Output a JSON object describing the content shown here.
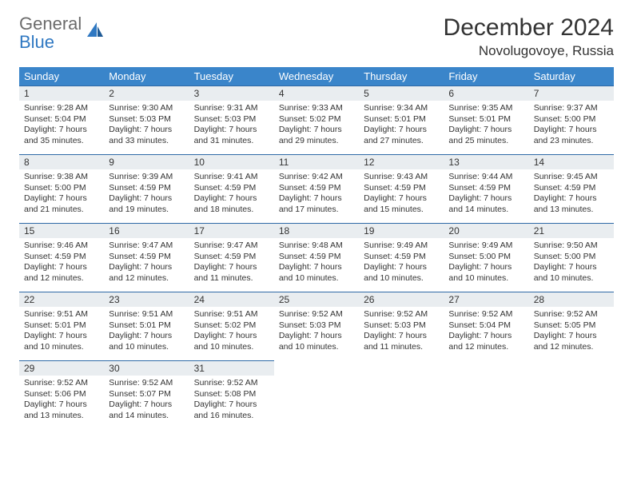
{
  "brand": {
    "name_top": "General",
    "name_bottom": "Blue"
  },
  "title": "December 2024",
  "location": "Novolugovoye, Russia",
  "colors": {
    "header_bg": "#3a85ca",
    "header_text": "#ffffff",
    "daynum_bg": "#e9edf0",
    "cell_border": "#2f6aa6",
    "text": "#333333",
    "logo_gray": "#6b6b6b",
    "logo_blue": "#2f78c2",
    "page_bg": "#ffffff"
  },
  "weekdays": [
    "Sunday",
    "Monday",
    "Tuesday",
    "Wednesday",
    "Thursday",
    "Friday",
    "Saturday"
  ],
  "weeks": [
    [
      {
        "n": "1",
        "sr": "Sunrise: 9:28 AM",
        "ss": "Sunset: 5:04 PM",
        "d1": "Daylight: 7 hours",
        "d2": "and 35 minutes."
      },
      {
        "n": "2",
        "sr": "Sunrise: 9:30 AM",
        "ss": "Sunset: 5:03 PM",
        "d1": "Daylight: 7 hours",
        "d2": "and 33 minutes."
      },
      {
        "n": "3",
        "sr": "Sunrise: 9:31 AM",
        "ss": "Sunset: 5:03 PM",
        "d1": "Daylight: 7 hours",
        "d2": "and 31 minutes."
      },
      {
        "n": "4",
        "sr": "Sunrise: 9:33 AM",
        "ss": "Sunset: 5:02 PM",
        "d1": "Daylight: 7 hours",
        "d2": "and 29 minutes."
      },
      {
        "n": "5",
        "sr": "Sunrise: 9:34 AM",
        "ss": "Sunset: 5:01 PM",
        "d1": "Daylight: 7 hours",
        "d2": "and 27 minutes."
      },
      {
        "n": "6",
        "sr": "Sunrise: 9:35 AM",
        "ss": "Sunset: 5:01 PM",
        "d1": "Daylight: 7 hours",
        "d2": "and 25 minutes."
      },
      {
        "n": "7",
        "sr": "Sunrise: 9:37 AM",
        "ss": "Sunset: 5:00 PM",
        "d1": "Daylight: 7 hours",
        "d2": "and 23 minutes."
      }
    ],
    [
      {
        "n": "8",
        "sr": "Sunrise: 9:38 AM",
        "ss": "Sunset: 5:00 PM",
        "d1": "Daylight: 7 hours",
        "d2": "and 21 minutes."
      },
      {
        "n": "9",
        "sr": "Sunrise: 9:39 AM",
        "ss": "Sunset: 4:59 PM",
        "d1": "Daylight: 7 hours",
        "d2": "and 19 minutes."
      },
      {
        "n": "10",
        "sr": "Sunrise: 9:41 AM",
        "ss": "Sunset: 4:59 PM",
        "d1": "Daylight: 7 hours",
        "d2": "and 18 minutes."
      },
      {
        "n": "11",
        "sr": "Sunrise: 9:42 AM",
        "ss": "Sunset: 4:59 PM",
        "d1": "Daylight: 7 hours",
        "d2": "and 17 minutes."
      },
      {
        "n": "12",
        "sr": "Sunrise: 9:43 AM",
        "ss": "Sunset: 4:59 PM",
        "d1": "Daylight: 7 hours",
        "d2": "and 15 minutes."
      },
      {
        "n": "13",
        "sr": "Sunrise: 9:44 AM",
        "ss": "Sunset: 4:59 PM",
        "d1": "Daylight: 7 hours",
        "d2": "and 14 minutes."
      },
      {
        "n": "14",
        "sr": "Sunrise: 9:45 AM",
        "ss": "Sunset: 4:59 PM",
        "d1": "Daylight: 7 hours",
        "d2": "and 13 minutes."
      }
    ],
    [
      {
        "n": "15",
        "sr": "Sunrise: 9:46 AM",
        "ss": "Sunset: 4:59 PM",
        "d1": "Daylight: 7 hours",
        "d2": "and 12 minutes."
      },
      {
        "n": "16",
        "sr": "Sunrise: 9:47 AM",
        "ss": "Sunset: 4:59 PM",
        "d1": "Daylight: 7 hours",
        "d2": "and 12 minutes."
      },
      {
        "n": "17",
        "sr": "Sunrise: 9:47 AM",
        "ss": "Sunset: 4:59 PM",
        "d1": "Daylight: 7 hours",
        "d2": "and 11 minutes."
      },
      {
        "n": "18",
        "sr": "Sunrise: 9:48 AM",
        "ss": "Sunset: 4:59 PM",
        "d1": "Daylight: 7 hours",
        "d2": "and 10 minutes."
      },
      {
        "n": "19",
        "sr": "Sunrise: 9:49 AM",
        "ss": "Sunset: 4:59 PM",
        "d1": "Daylight: 7 hours",
        "d2": "and 10 minutes."
      },
      {
        "n": "20",
        "sr": "Sunrise: 9:49 AM",
        "ss": "Sunset: 5:00 PM",
        "d1": "Daylight: 7 hours",
        "d2": "and 10 minutes."
      },
      {
        "n": "21",
        "sr": "Sunrise: 9:50 AM",
        "ss": "Sunset: 5:00 PM",
        "d1": "Daylight: 7 hours",
        "d2": "and 10 minutes."
      }
    ],
    [
      {
        "n": "22",
        "sr": "Sunrise: 9:51 AM",
        "ss": "Sunset: 5:01 PM",
        "d1": "Daylight: 7 hours",
        "d2": "and 10 minutes."
      },
      {
        "n": "23",
        "sr": "Sunrise: 9:51 AM",
        "ss": "Sunset: 5:01 PM",
        "d1": "Daylight: 7 hours",
        "d2": "and 10 minutes."
      },
      {
        "n": "24",
        "sr": "Sunrise: 9:51 AM",
        "ss": "Sunset: 5:02 PM",
        "d1": "Daylight: 7 hours",
        "d2": "and 10 minutes."
      },
      {
        "n": "25",
        "sr": "Sunrise: 9:52 AM",
        "ss": "Sunset: 5:03 PM",
        "d1": "Daylight: 7 hours",
        "d2": "and 10 minutes."
      },
      {
        "n": "26",
        "sr": "Sunrise: 9:52 AM",
        "ss": "Sunset: 5:03 PM",
        "d1": "Daylight: 7 hours",
        "d2": "and 11 minutes."
      },
      {
        "n": "27",
        "sr": "Sunrise: 9:52 AM",
        "ss": "Sunset: 5:04 PM",
        "d1": "Daylight: 7 hours",
        "d2": "and 12 minutes."
      },
      {
        "n": "28",
        "sr": "Sunrise: 9:52 AM",
        "ss": "Sunset: 5:05 PM",
        "d1": "Daylight: 7 hours",
        "d2": "and 12 minutes."
      }
    ],
    [
      {
        "n": "29",
        "sr": "Sunrise: 9:52 AM",
        "ss": "Sunset: 5:06 PM",
        "d1": "Daylight: 7 hours",
        "d2": "and 13 minutes."
      },
      {
        "n": "30",
        "sr": "Sunrise: 9:52 AM",
        "ss": "Sunset: 5:07 PM",
        "d1": "Daylight: 7 hours",
        "d2": "and 14 minutes."
      },
      {
        "n": "31",
        "sr": "Sunrise: 9:52 AM",
        "ss": "Sunset: 5:08 PM",
        "d1": "Daylight: 7 hours",
        "d2": "and 16 minutes."
      },
      null,
      null,
      null,
      null
    ]
  ]
}
